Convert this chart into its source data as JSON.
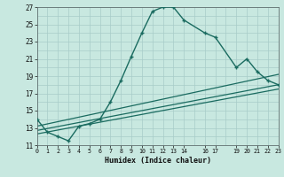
{
  "title": "",
  "xlabel": "Humidex (Indice chaleur)",
  "bg_color": "#c8e8e0",
  "grid_color": "#a8ccc8",
  "line_color": "#1a6b60",
  "xlim": [
    0,
    23
  ],
  "ylim": [
    11,
    27
  ],
  "yticks": [
    11,
    13,
    15,
    17,
    19,
    21,
    23,
    25,
    27
  ],
  "xticks": [
    0,
    1,
    2,
    3,
    4,
    5,
    6,
    7,
    8,
    9,
    10,
    11,
    12,
    13,
    14,
    16,
    17,
    19,
    20,
    21,
    22,
    23
  ],
  "curve_x": [
    0,
    1,
    2,
    3,
    4,
    5,
    6,
    7,
    8,
    9,
    10,
    11,
    12,
    13,
    14,
    16,
    17,
    19,
    20,
    21,
    22,
    23
  ],
  "curve_y": [
    14.0,
    12.5,
    12.0,
    11.5,
    13.2,
    13.5,
    14.0,
    16.0,
    18.5,
    21.3,
    24.0,
    26.5,
    27.0,
    27.0,
    25.5,
    24.0,
    23.5,
    20.0,
    21.0,
    19.5,
    18.5,
    18.0
  ],
  "trend1_x": [
    0,
    23
  ],
  "trend1_y": [
    12.3,
    17.5
  ],
  "trend2_x": [
    0,
    23
  ],
  "trend2_y": [
    12.7,
    18.0
  ],
  "trend3_x": [
    0,
    23
  ],
  "trend3_y": [
    13.2,
    19.2
  ]
}
